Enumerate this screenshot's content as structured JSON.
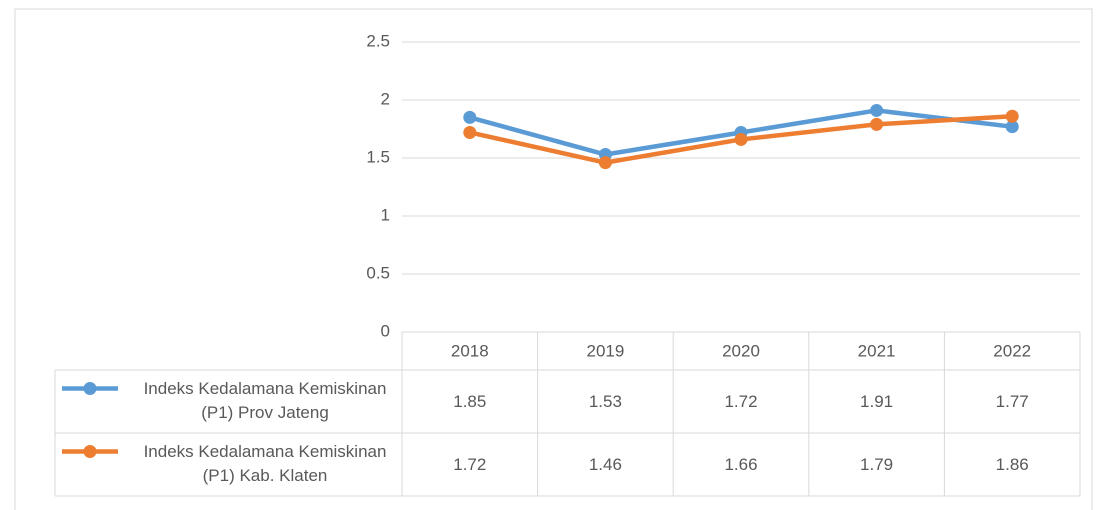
{
  "chart_data": {
    "type": "line",
    "categories": [
      "2018",
      "2019",
      "2020",
      "2021",
      "2022"
    ],
    "series": [
      {
        "name": "Indeks Kedalamana Kemiskinan (P1) Prov Jateng",
        "color": "#5b9bd5",
        "values": [
          1.85,
          1.53,
          1.72,
          1.91,
          1.77
        ]
      },
      {
        "name": "Indeks Kedalamana Kemiskinan (P1) Kab. Klaten",
        "color": "#ed7d31",
        "values": [
          1.72,
          1.46,
          1.66,
          1.79,
          1.86
        ]
      }
    ],
    "ylim": [
      0,
      2.5
    ],
    "yticks": [
      0,
      0.5,
      1,
      1.5,
      2,
      2.5
    ],
    "grid": true,
    "data_table": true
  }
}
